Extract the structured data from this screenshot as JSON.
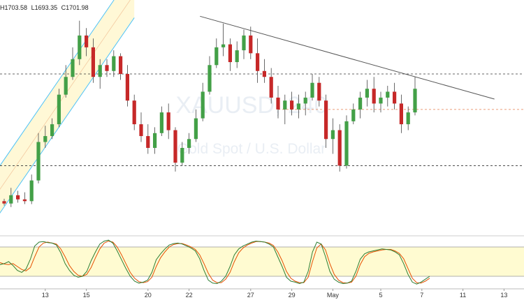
{
  "header": {
    "high": "H1703.58",
    "low": "L1693.35",
    "close": "C1701.98"
  },
  "watermark": {
    "symbol": "XAUUSD, 240",
    "description": "Gold Spot / U.S. Dollar"
  },
  "colors": {
    "up": "#43a047",
    "down": "#c62828",
    "channel_line": "#4fc3f7",
    "channel_fill": "#fff8d6",
    "trendline": "#555555",
    "level_line": "#333333",
    "entry_line": "#e57c4e",
    "stoch_k": "#2e7d32",
    "stoch_d": "#e65100",
    "stoch_band": "#fffbd1"
  },
  "chart_data": {
    "type": "candlestick",
    "y_range": [
      1653,
      1728
    ],
    "x_ticks": [
      {
        "label": "13",
        "i": 6
      },
      {
        "label": "15",
        "i": 12
      },
      {
        "label": "20",
        "i": 21
      },
      {
        "label": "22",
        "i": 27
      },
      {
        "label": "27",
        "i": 36
      },
      {
        "label": "29",
        "i": 42
      },
      {
        "label": "May",
        "i": 48
      },
      {
        "label": "5",
        "i": 55
      },
      {
        "label": "7",
        "i": 61
      },
      {
        "label": "11",
        "i": 67
      },
      {
        "label": "13",
        "i": 73
      }
    ],
    "candles": [
      [
        1660,
        1660.8,
        1658.5,
        1659.2
      ],
      [
        1659.2,
        1664.5,
        1658.0,
        1662.0
      ],
      [
        1662,
        1663.5,
        1659.5,
        1660.6
      ],
      [
        1660.6,
        1663.0,
        1659.0,
        1660.0
      ],
      [
        1660,
        1669.0,
        1659.0,
        1667.0
      ],
      [
        1667,
        1683.0,
        1666.0,
        1680.0
      ],
      [
        1680,
        1685.5,
        1678.0,
        1682.0
      ],
      [
        1682,
        1688.0,
        1681.0,
        1686.0
      ],
      [
        1686,
        1698.0,
        1685.0,
        1696.0
      ],
      [
        1696,
        1706.0,
        1695.0,
        1702.0
      ],
      [
        1702,
        1712.0,
        1701.0,
        1708.0
      ],
      [
        1708,
        1721.0,
        1706.0,
        1716.0
      ],
      [
        1716,
        1718.5,
        1709.0,
        1712.0
      ],
      [
        1712,
        1715.0,
        1700.0,
        1702.0
      ],
      [
        1702,
        1708.0,
        1698.0,
        1706.0
      ],
      [
        1706,
        1708.0,
        1702.0,
        1704.0
      ],
      [
        1704,
        1711.0,
        1702.0,
        1709.0
      ],
      [
        1709,
        1710.0,
        1701.0,
        1703.0
      ],
      [
        1703,
        1706.0,
        1692.0,
        1694.0
      ],
      [
        1694,
        1696.0,
        1684.0,
        1686.0
      ],
      [
        1686,
        1690.0,
        1680.0,
        1682.0
      ],
      [
        1682,
        1686.0,
        1676.0,
        1678.0
      ],
      [
        1678,
        1685.0,
        1676.0,
        1683.0
      ],
      [
        1683,
        1692.0,
        1682.0,
        1690.0
      ],
      [
        1690,
        1693.0,
        1681.0,
        1684.0
      ],
      [
        1684,
        1685.0,
        1670.0,
        1673.0
      ],
      [
        1673,
        1680.0,
        1672.0,
        1678.0
      ],
      [
        1678,
        1683.0,
        1676.0,
        1681.0
      ],
      [
        1681,
        1691.0,
        1680.0,
        1688.0
      ],
      [
        1688,
        1700.0,
        1687.0,
        1697.0
      ],
      [
        1697,
        1709.0,
        1696.0,
        1706.0
      ],
      [
        1706,
        1715.0,
        1705.0,
        1712.0
      ],
      [
        1712,
        1720.0,
        1709.0,
        1713.0
      ],
      [
        1713,
        1715.0,
        1704.0,
        1707.0
      ],
      [
        1707,
        1714.0,
        1705.0,
        1711.0
      ],
      [
        1711,
        1718.0,
        1708.0,
        1716.0
      ],
      [
        1716,
        1719.0,
        1708.0,
        1710.0
      ],
      [
        1710,
        1715.0,
        1700.0,
        1704.0
      ],
      [
        1704,
        1708.0,
        1700.0,
        1702.0
      ],
      [
        1702,
        1705.0,
        1693.0,
        1695.0
      ],
      [
        1695,
        1699.0,
        1688.0,
        1691.0
      ],
      [
        1691,
        1696.0,
        1686.0,
        1694.0
      ],
      [
        1694,
        1697.0,
        1689.0,
        1691.0
      ],
      [
        1691,
        1696.0,
        1688.0,
        1693.0
      ],
      [
        1693,
        1697.0,
        1689.0,
        1695.0
      ],
      [
        1695,
        1703.0,
        1694.0,
        1700.0
      ],
      [
        1700,
        1702.0,
        1692.0,
        1694.0
      ],
      [
        1694,
        1696.0,
        1678.0,
        1681.0
      ],
      [
        1681,
        1688.0,
        1676.0,
        1684.0
      ],
      [
        1684,
        1686.0,
        1670.0,
        1672.0
      ],
      [
        1672,
        1689.0,
        1671.0,
        1687.0
      ],
      [
        1687,
        1693.0,
        1686.0,
        1691.0
      ],
      [
        1691,
        1697.0,
        1688.0,
        1695.0
      ],
      [
        1695,
        1701.0,
        1692.0,
        1698.0
      ],
      [
        1698,
        1702.0,
        1690.0,
        1693.0
      ],
      [
        1693,
        1697.0,
        1690.0,
        1695.0
      ],
      [
        1695,
        1699.0,
        1692.0,
        1697.0
      ],
      [
        1697,
        1700.0,
        1691.0,
        1693.0
      ],
      [
        1693,
        1696.0,
        1683.0,
        1686.0
      ],
      [
        1686,
        1692.0,
        1684.0,
        1690.0
      ],
      [
        1690,
        1702.0,
        1689.0,
        1698.0
      ]
    ],
    "stochastic": {
      "k": [
        44,
        46,
        50,
        42,
        32,
        28,
        35,
        55,
        82,
        90,
        91,
        89,
        88,
        84,
        68,
        46,
        32,
        22,
        18,
        20,
        30,
        52,
        70,
        86,
        92,
        94,
        88,
        72,
        54,
        36,
        20,
        10,
        6,
        8,
        12,
        28,
        54,
        66,
        76,
        84,
        87,
        88,
        86,
        82,
        78,
        72,
        56,
        32,
        12,
        6,
        5,
        10,
        20,
        40,
        64,
        76,
        82,
        86,
        90,
        92,
        91,
        90,
        86,
        80,
        60,
        40,
        18,
        10,
        8,
        5,
        8,
        30,
        70,
        90,
        86,
        60,
        30,
        14,
        8,
        5,
        6,
        10,
        30,
        55,
        66,
        70,
        72,
        74,
        76,
        75,
        74,
        70,
        64,
        46,
        24,
        8,
        4,
        8,
        14,
        20
      ],
      "d": [
        48,
        45,
        44,
        46,
        40,
        34,
        31,
        38,
        60,
        80,
        88,
        90,
        88,
        86,
        76,
        60,
        42,
        30,
        22,
        20,
        24,
        38,
        58,
        76,
        88,
        92,
        90,
        80,
        64,
        46,
        28,
        16,
        9,
        7,
        9,
        18,
        40,
        58,
        70,
        80,
        85,
        87,
        87,
        84,
        80,
        75,
        64,
        46,
        26,
        12,
        7,
        7,
        14,
        28,
        50,
        68,
        78,
        84,
        88,
        91,
        91,
        90,
        88,
        83,
        70,
        52,
        30,
        16,
        10,
        7,
        7,
        18,
        50,
        78,
        86,
        74,
        46,
        24,
        12,
        7,
        6,
        8,
        20,
        44,
        60,
        67,
        70,
        72,
        74,
        75,
        75,
        72,
        67,
        56,
        36,
        16,
        7,
        6,
        10,
        16
      ],
      "levels": [
        80,
        20
      ]
    }
  }
}
